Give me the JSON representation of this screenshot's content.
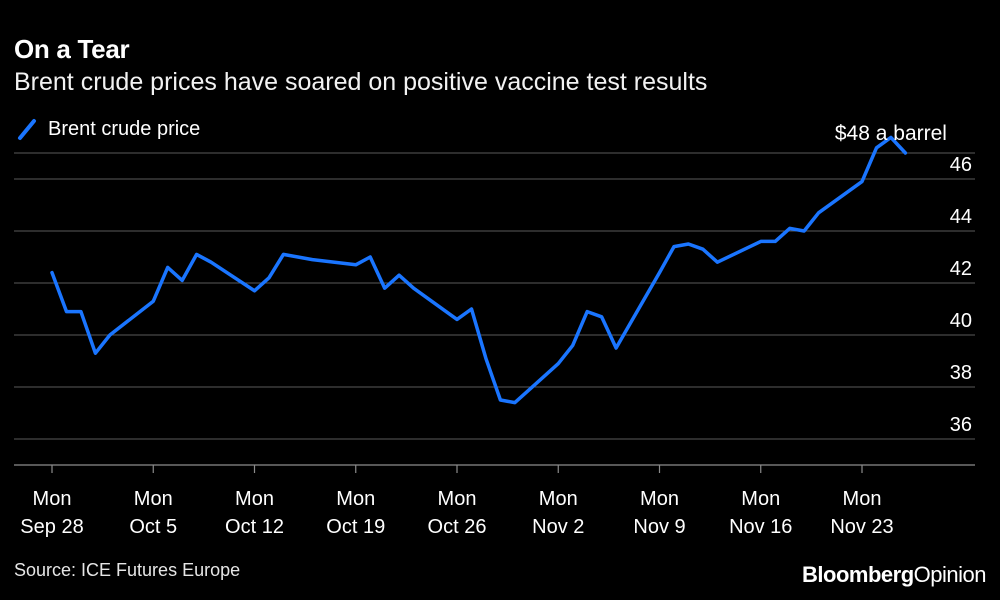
{
  "header": {
    "title": "On a Tear",
    "subtitle": "Brent crude prices have soared on positive vaccine test results"
  },
  "footer": {
    "source": "Source: ICE Futures Europe",
    "brand_bold": "Bloomberg",
    "brand_light": "Opinion"
  },
  "colors": {
    "background": "#000000",
    "line": "#1a75ff",
    "grid": "#5a5a5a",
    "text": "#ffffff"
  },
  "chart_data": {
    "type": "line",
    "title": "On a Tear",
    "subtitle": "Brent crude prices have soared on positive vaccine test results",
    "xlabel": "",
    "ylabel": "",
    "ylim": [
      35,
      47.5
    ],
    "yticks": [
      36,
      38,
      40,
      42,
      44,
      46
    ],
    "y_axis_side": "right",
    "grid": true,
    "legend_position": "top-left",
    "annotation": {
      "text": "$48 a barrel",
      "x": "2020-11-25"
    },
    "x_ticks": [
      {
        "date": "2020-09-28",
        "line1": "Mon",
        "line2": "Sep 28"
      },
      {
        "date": "2020-10-05",
        "line1": "Mon",
        "line2": "Oct 5"
      },
      {
        "date": "2020-10-12",
        "line1": "Mon",
        "line2": "Oct 12"
      },
      {
        "date": "2020-10-19",
        "line1": "Mon",
        "line2": "Oct 19"
      },
      {
        "date": "2020-10-26",
        "line1": "Mon",
        "line2": "Oct 26"
      },
      {
        "date": "2020-11-02",
        "line1": "Mon",
        "line2": "Nov 2"
      },
      {
        "date": "2020-11-09",
        "line1": "Mon",
        "line2": "Nov 9"
      },
      {
        "date": "2020-11-16",
        "line1": "Mon",
        "line2": "Nov 16"
      },
      {
        "date": "2020-11-23",
        "line1": "Mon",
        "line2": "Nov 23"
      }
    ],
    "series": [
      {
        "name": "Brent crude price",
        "x": [
          "2020-09-28",
          "2020-09-29",
          "2020-09-30",
          "2020-10-01",
          "2020-10-02",
          "2020-10-05",
          "2020-10-06",
          "2020-10-07",
          "2020-10-08",
          "2020-10-09",
          "2020-10-12",
          "2020-10-13",
          "2020-10-14",
          "2020-10-15",
          "2020-10-16",
          "2020-10-19",
          "2020-10-20",
          "2020-10-21",
          "2020-10-22",
          "2020-10-23",
          "2020-10-26",
          "2020-10-27",
          "2020-10-28",
          "2020-10-29",
          "2020-10-30",
          "2020-11-02",
          "2020-11-03",
          "2020-11-04",
          "2020-11-05",
          "2020-11-06",
          "2020-11-09",
          "2020-11-10",
          "2020-11-11",
          "2020-11-12",
          "2020-11-13",
          "2020-11-16",
          "2020-11-17",
          "2020-11-18",
          "2020-11-19",
          "2020-11-20",
          "2020-11-23",
          "2020-11-24",
          "2020-11-25",
          "2020-11-26"
        ],
        "values": [
          42.4,
          40.9,
          40.9,
          39.3,
          40.0,
          41.3,
          42.6,
          42.1,
          43.1,
          42.8,
          41.7,
          42.2,
          43.1,
          43.0,
          42.9,
          42.7,
          43.0,
          41.8,
          42.3,
          41.8,
          40.6,
          41.0,
          39.1,
          37.5,
          37.4,
          38.9,
          39.6,
          40.9,
          40.7,
          39.5,
          42.4,
          43.4,
          43.5,
          43.3,
          42.8,
          43.6,
          43.6,
          44.1,
          44.0,
          44.7,
          45.9,
          47.2,
          47.6,
          47.0
        ]
      }
    ]
  }
}
